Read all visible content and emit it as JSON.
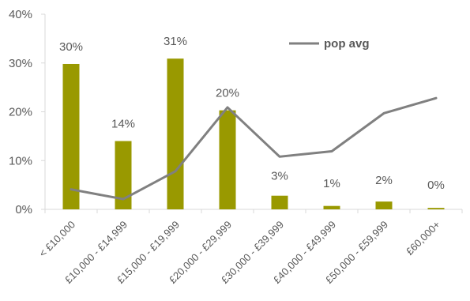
{
  "chart_data": {
    "type": "bar",
    "categories": [
      "< £10,000",
      "£10,000 - £14,999",
      "£15,000 - £19,999",
      "£20,000 - £29,999",
      "£30,000 - £39,999",
      "£40,000 - £49,999",
      "£50,000 - £59,999",
      "£60,000+"
    ],
    "series": [
      {
        "name": "",
        "type": "bar",
        "values": [
          30,
          14,
          31,
          20,
          3,
          1,
          2,
          0
        ],
        "labels": [
          "30%",
          "14%",
          "31%",
          "20%",
          "3%",
          "1%",
          "2%",
          "0%"
        ],
        "actual_values": [
          29.8,
          14.0,
          30.9,
          20.3,
          2.8,
          0.7,
          1.6,
          0.3
        ],
        "color": "#999900"
      },
      {
        "name": "pop avg",
        "type": "line",
        "values": [
          4.1,
          2.1,
          7.8,
          20.9,
          10.8,
          11.9,
          19.7,
          22.8
        ],
        "color": "#808080"
      }
    ],
    "y_ticks": [
      "0%",
      "10%",
      "20%",
      "30%",
      "40%"
    ],
    "ylim": [
      0,
      40
    ],
    "grid": false,
    "legend_position": "top-right",
    "title": "",
    "xlabel": "",
    "ylabel": ""
  }
}
